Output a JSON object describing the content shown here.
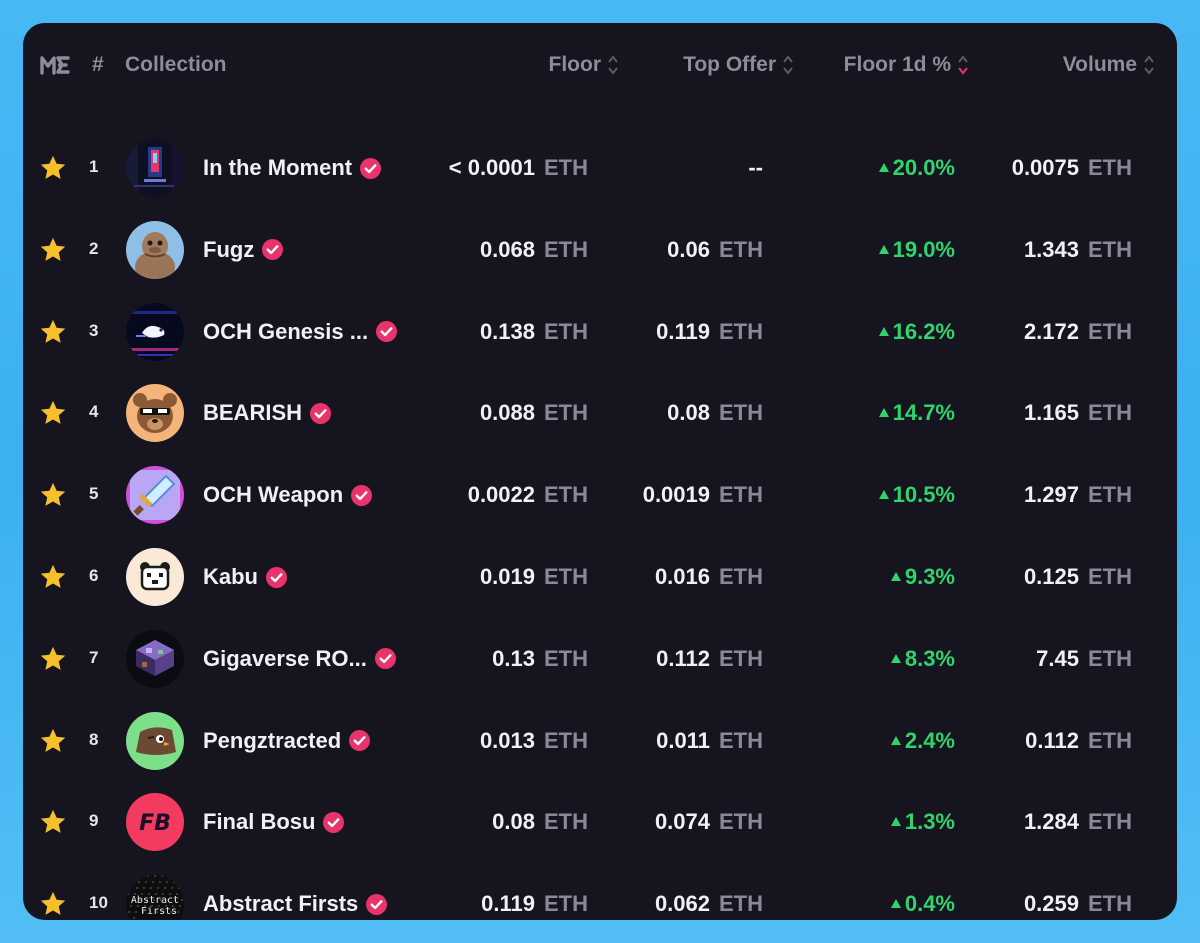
{
  "header": {
    "logo": "ME",
    "rank": "#",
    "collection": "Collection",
    "floor": "Floor",
    "top_offer": "Top Offer",
    "floor_change": "Floor 1d %",
    "volume": "Volume",
    "active_sort_color": "#e8336b"
  },
  "colors": {
    "star": "#f6c02c",
    "positive": "#2fd46d",
    "verified": "#e8336b"
  },
  "rows": [
    {
      "rank": "1",
      "name": "In the Moment",
      "floor": "< 0.0001",
      "floor_unit": "ETH",
      "offer": "--",
      "offer_unit": "",
      "change": "20.0%",
      "volume": "0.0075",
      "volume_unit": "ETH",
      "avatar_icon": "moment-art-icon"
    },
    {
      "rank": "2",
      "name": "Fugz",
      "floor": "0.068",
      "floor_unit": "ETH",
      "offer": "0.06",
      "offer_unit": "ETH",
      "change": "19.0%",
      "volume": "1.343",
      "volume_unit": "ETH",
      "avatar_icon": "fugz-bird-icon"
    },
    {
      "rank": "3",
      "name": "OCH Genesis ...",
      "floor": "0.138",
      "floor_unit": "ETH",
      "offer": "0.119",
      "offer_unit": "ETH",
      "change": "16.2%",
      "volume": "2.172",
      "volume_unit": "ETH",
      "avatar_icon": "och-genesis-icon"
    },
    {
      "rank": "4",
      "name": "BEARISH",
      "floor": "0.088",
      "floor_unit": "ETH",
      "offer": "0.08",
      "offer_unit": "ETH",
      "change": "14.7%",
      "volume": "1.165",
      "volume_unit": "ETH",
      "avatar_icon": "bear-icon"
    },
    {
      "rank": "5",
      "name": "OCH Weapon",
      "floor": "0.0022",
      "floor_unit": "ETH",
      "offer": "0.0019",
      "offer_unit": "ETH",
      "change": "10.5%",
      "volume": "1.297",
      "volume_unit": "ETH",
      "avatar_icon": "sword-icon"
    },
    {
      "rank": "6",
      "name": "Kabu",
      "floor": "0.019",
      "floor_unit": "ETH",
      "offer": "0.016",
      "offer_unit": "ETH",
      "change": "9.3%",
      "volume": "0.125",
      "volume_unit": "ETH",
      "avatar_icon": "panda-icon"
    },
    {
      "rank": "7",
      "name": "Gigaverse RO...",
      "floor": "0.13",
      "floor_unit": "ETH",
      "offer": "0.112",
      "offer_unit": "ETH",
      "change": "8.3%",
      "volume": "7.45",
      "volume_unit": "ETH",
      "avatar_icon": "isometric-room-icon"
    },
    {
      "rank": "8",
      "name": "Pengztracted",
      "floor": "0.013",
      "floor_unit": "ETH",
      "offer": "0.011",
      "offer_unit": "ETH",
      "change": "2.4%",
      "volume": "0.112",
      "volume_unit": "ETH",
      "avatar_icon": "penguin-icon"
    },
    {
      "rank": "9",
      "name": "Final Bosu",
      "floor": "0.08",
      "floor_unit": "ETH",
      "offer": "0.074",
      "offer_unit": "ETH",
      "change": "1.3%",
      "volume": "1.284",
      "volume_unit": "ETH",
      "avatar_icon": "fb-logo-icon"
    },
    {
      "rank": "10",
      "name": "Abstract Firsts",
      "floor": "0.119",
      "floor_unit": "ETH",
      "offer": "0.062",
      "offer_unit": "ETH",
      "change": "0.4%",
      "volume": "0.259",
      "volume_unit": "ETH",
      "avatar_icon": "abstract-text-icon",
      "avatar_text_1": "Abstract",
      "avatar_text_2": "Firsts"
    }
  ]
}
